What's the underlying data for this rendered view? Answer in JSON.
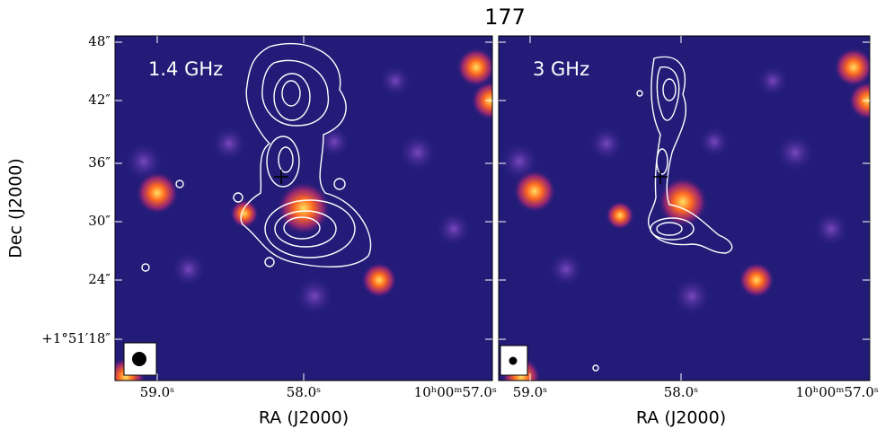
{
  "figure": {
    "title": "177",
    "y_label": "Dec (J2000)",
    "y_ticks": [
      "48″",
      "42″",
      "36″",
      "30″",
      "24″",
      "+1°51′18″"
    ],
    "panels": [
      {
        "label": "1.4 GHz",
        "x_label": "RA (J2000)",
        "x_ticks": [
          "59.0ˢ",
          "58.0ˢ",
          "10ʰ00ᵐ57.0ˢ"
        ]
      },
      {
        "label": "3 GHz",
        "x_label": "RA (J2000)",
        "x_ticks": [
          "59.0ˢ",
          "58.0ˢ",
          "10ʰ00ᵐ57.0ˢ"
        ]
      }
    ]
  }
}
